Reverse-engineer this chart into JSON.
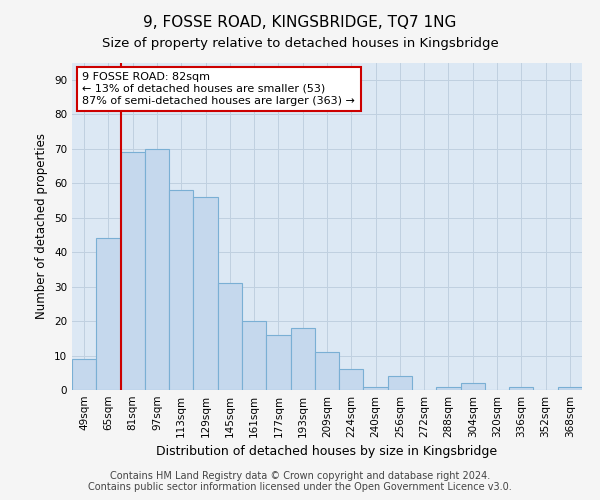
{
  "title": "9, FOSSE ROAD, KINGSBRIDGE, TQ7 1NG",
  "subtitle": "Size of property relative to detached houses in Kingsbridge",
  "xlabel": "Distribution of detached houses by size in Kingsbridge",
  "ylabel": "Number of detached properties",
  "categories": [
    "49sqm",
    "65sqm",
    "81sqm",
    "97sqm",
    "113sqm",
    "129sqm",
    "145sqm",
    "161sqm",
    "177sqm",
    "193sqm",
    "209sqm",
    "224sqm",
    "240sqm",
    "256sqm",
    "272sqm",
    "288sqm",
    "304sqm",
    "320sqm",
    "336sqm",
    "352sqm",
    "368sqm"
  ],
  "values": [
    9,
    44,
    69,
    70,
    58,
    56,
    31,
    20,
    16,
    18,
    11,
    6,
    1,
    4,
    0,
    1,
    2,
    0,
    1,
    0,
    1
  ],
  "bar_color": "#c5d8ed",
  "bar_edge_color": "#7aafd4",
  "vline_index": 2,
  "vline_color": "#cc0000",
  "annotation_text": "9 FOSSE ROAD: 82sqm\n← 13% of detached houses are smaller (53)\n87% of semi-detached houses are larger (363) →",
  "annotation_box_facecolor": "#ffffff",
  "annotation_box_edgecolor": "#cc0000",
  "ylim": [
    0,
    95
  ],
  "yticks": [
    0,
    10,
    20,
    30,
    40,
    50,
    60,
    70,
    80,
    90
  ],
  "grid_color": "#c0d0e0",
  "plot_bg_color": "#dce8f4",
  "fig_bg_color": "#f5f5f5",
  "footer_line1": "Contains HM Land Registry data © Crown copyright and database right 2024.",
  "footer_line2": "Contains public sector information licensed under the Open Government Licence v3.0.",
  "title_fontsize": 11,
  "subtitle_fontsize": 9.5,
  "xlabel_fontsize": 9,
  "ylabel_fontsize": 8.5,
  "tick_fontsize": 7.5,
  "annot_fontsize": 8,
  "footer_fontsize": 7
}
